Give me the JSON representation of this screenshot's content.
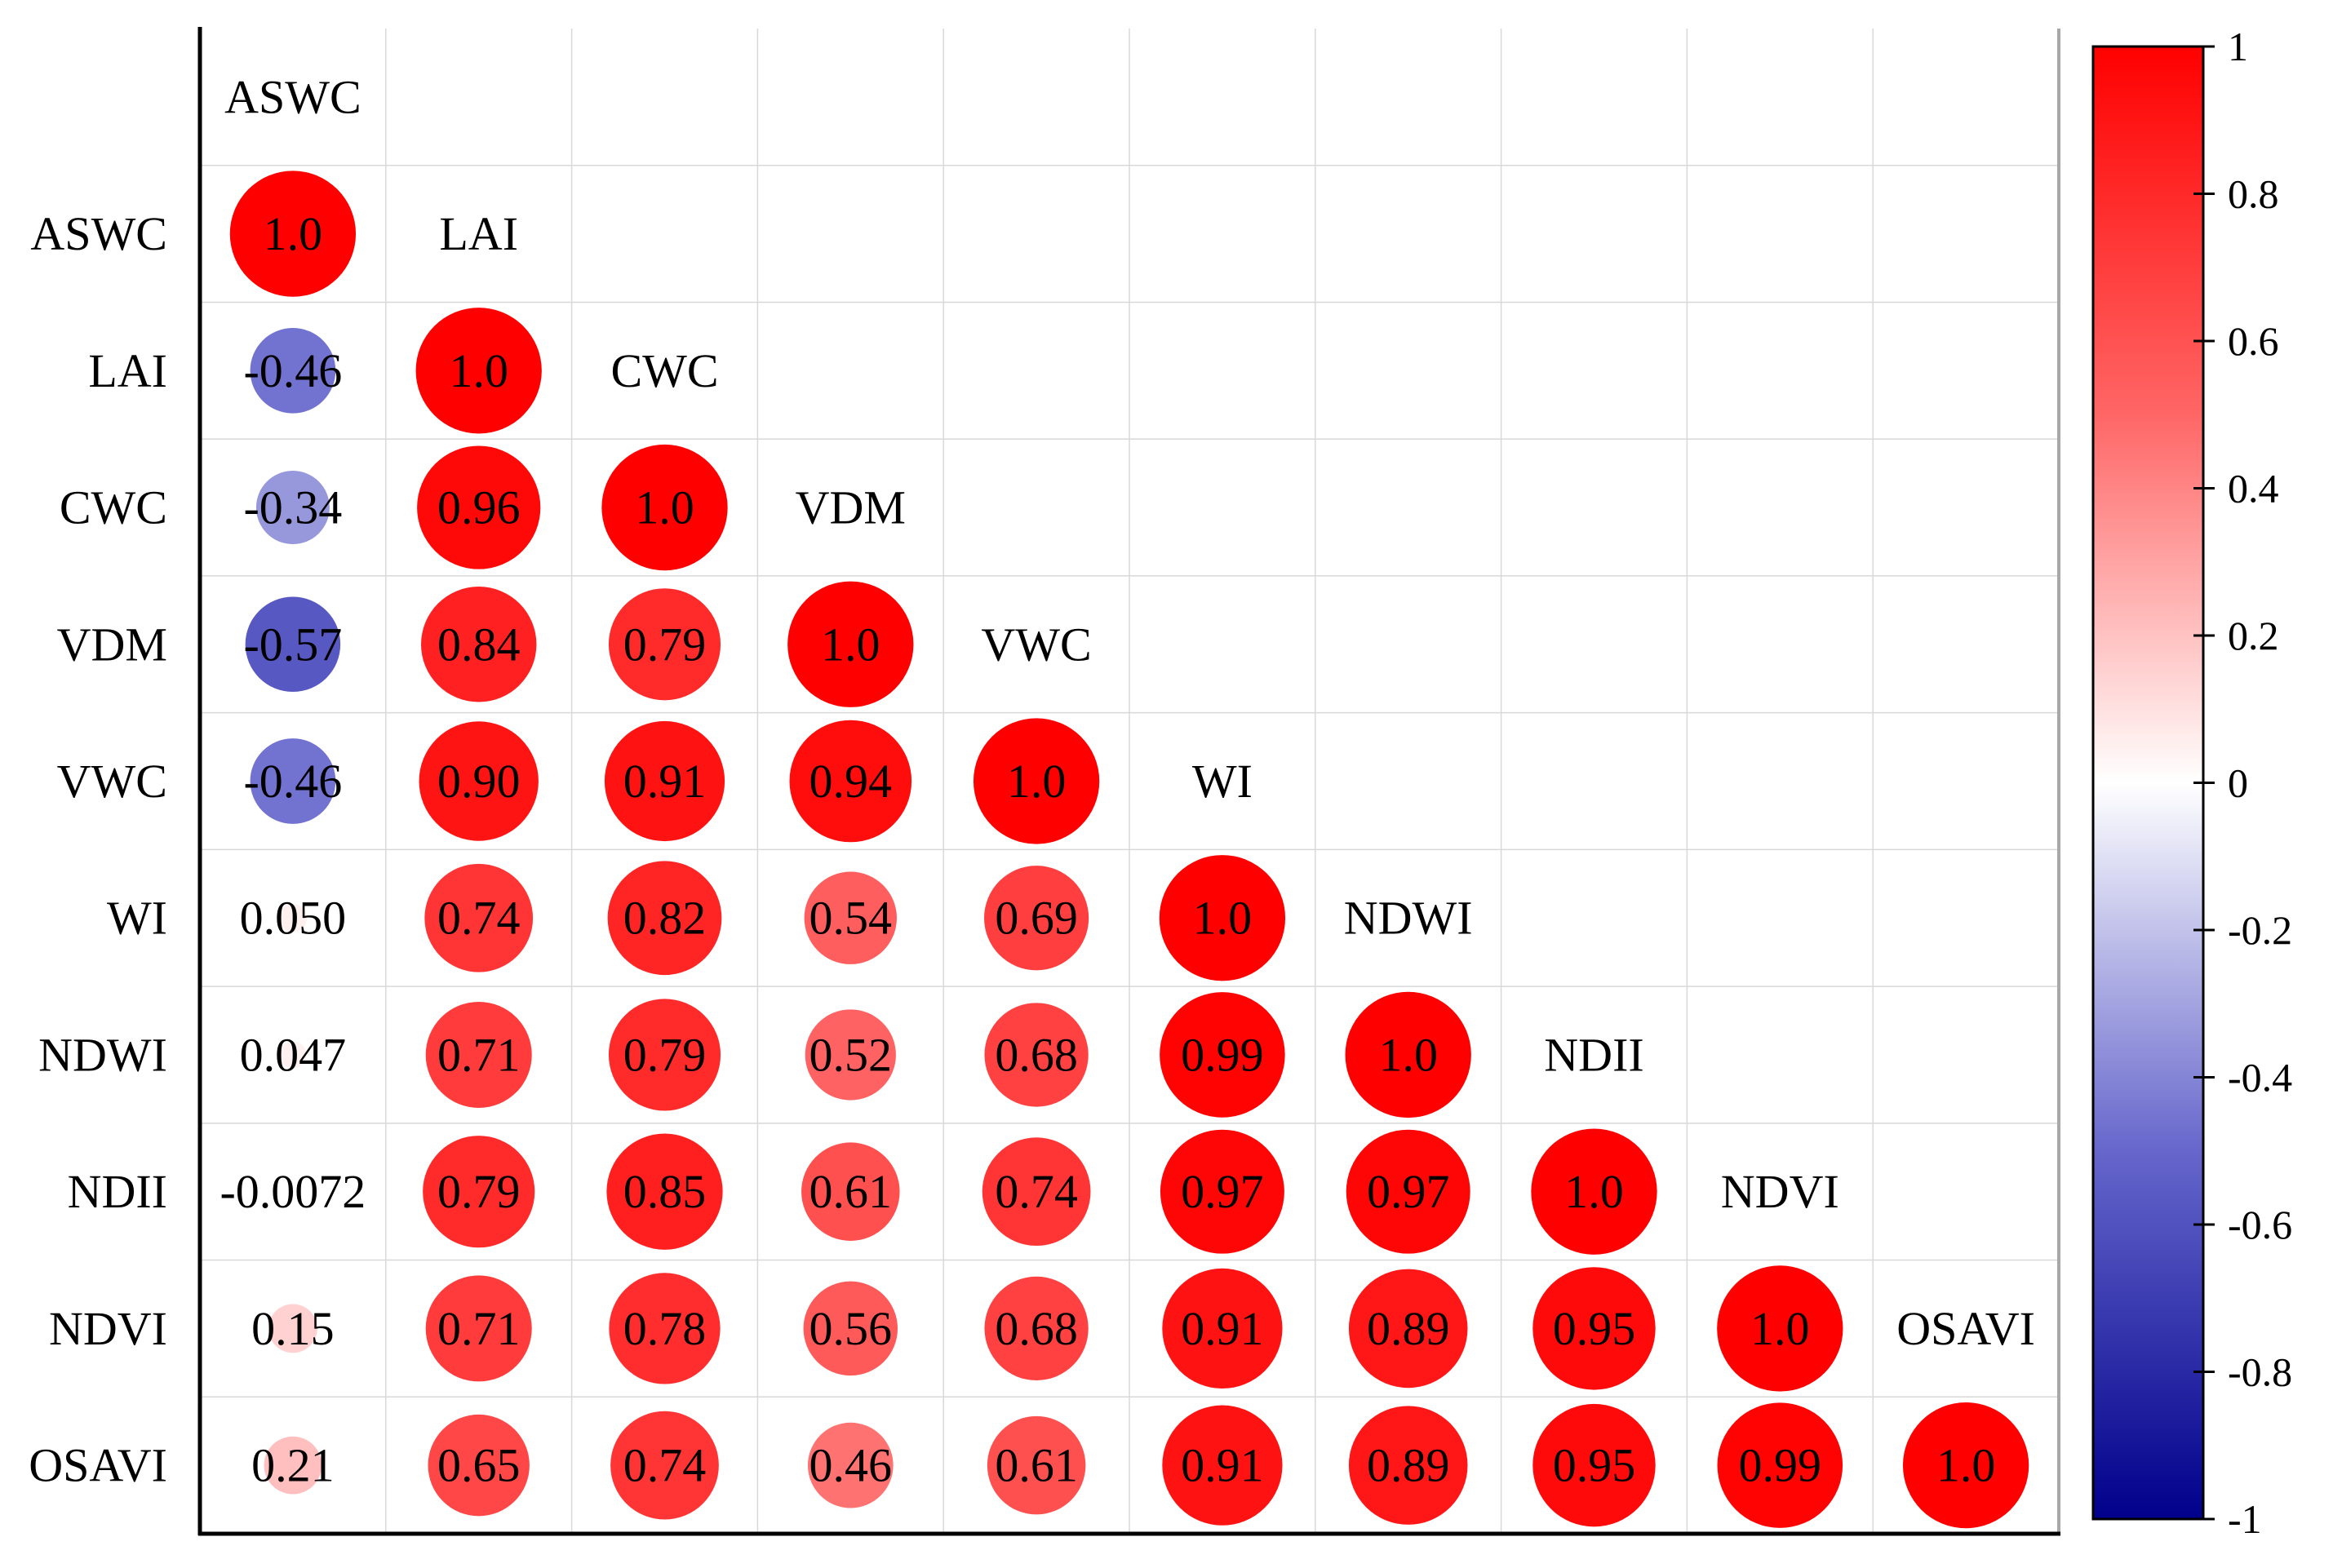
{
  "chart_data": {
    "type": "heatmap",
    "subtype": "lower-triangular correlation matrix (circle glyphs)",
    "variables": [
      "ASWC",
      "LAI",
      "CWC",
      "VDM",
      "VWC",
      "WI",
      "NDWI",
      "NDII",
      "NDVI",
      "OSAVI"
    ],
    "cells": [
      {
        "row": "ASWC",
        "col": "ASWC",
        "value": 1.0,
        "label": "1.0"
      },
      {
        "row": "LAI",
        "col": "ASWC",
        "value": -0.46,
        "label": "-0.46"
      },
      {
        "row": "LAI",
        "col": "LAI",
        "value": 1.0,
        "label": "1.0"
      },
      {
        "row": "CWC",
        "col": "ASWC",
        "value": -0.34,
        "label": "-0.34"
      },
      {
        "row": "CWC",
        "col": "LAI",
        "value": 0.96,
        "label": "0.96"
      },
      {
        "row": "CWC",
        "col": "CWC",
        "value": 1.0,
        "label": "1.0"
      },
      {
        "row": "VDM",
        "col": "ASWC",
        "value": -0.57,
        "label": "-0.57"
      },
      {
        "row": "VDM",
        "col": "LAI",
        "value": 0.84,
        "label": "0.84"
      },
      {
        "row": "VDM",
        "col": "CWC",
        "value": 0.79,
        "label": "0.79"
      },
      {
        "row": "VDM",
        "col": "VDM",
        "value": 1.0,
        "label": "1.0"
      },
      {
        "row": "VWC",
        "col": "ASWC",
        "value": -0.46,
        "label": "-0.46"
      },
      {
        "row": "VWC",
        "col": "LAI",
        "value": 0.9,
        "label": "0.90"
      },
      {
        "row": "VWC",
        "col": "CWC",
        "value": 0.91,
        "label": "0.91"
      },
      {
        "row": "VWC",
        "col": "VDM",
        "value": 0.94,
        "label": "0.94"
      },
      {
        "row": "VWC",
        "col": "VWC",
        "value": 1.0,
        "label": "1.0"
      },
      {
        "row": "WI",
        "col": "ASWC",
        "value": 0.05,
        "label": "0.050"
      },
      {
        "row": "WI",
        "col": "LAI",
        "value": 0.74,
        "label": "0.74"
      },
      {
        "row": "WI",
        "col": "CWC",
        "value": 0.82,
        "label": "0.82"
      },
      {
        "row": "WI",
        "col": "VDM",
        "value": 0.54,
        "label": "0.54"
      },
      {
        "row": "WI",
        "col": "VWC",
        "value": 0.69,
        "label": "0.69"
      },
      {
        "row": "WI",
        "col": "WI",
        "value": 1.0,
        "label": "1.0"
      },
      {
        "row": "NDWI",
        "col": "ASWC",
        "value": 0.047,
        "label": "0.047"
      },
      {
        "row": "NDWI",
        "col": "LAI",
        "value": 0.71,
        "label": "0.71"
      },
      {
        "row": "NDWI",
        "col": "CWC",
        "value": 0.79,
        "label": "0.79"
      },
      {
        "row": "NDWI",
        "col": "VDM",
        "value": 0.52,
        "label": "0.52"
      },
      {
        "row": "NDWI",
        "col": "VWC",
        "value": 0.68,
        "label": "0.68"
      },
      {
        "row": "NDWI",
        "col": "WI",
        "value": 0.99,
        "label": "0.99"
      },
      {
        "row": "NDWI",
        "col": "NDWI",
        "value": 1.0,
        "label": "1.0"
      },
      {
        "row": "NDII",
        "col": "ASWC",
        "value": -0.0072,
        "label": "-0.0072"
      },
      {
        "row": "NDII",
        "col": "LAI",
        "value": 0.79,
        "label": "0.79"
      },
      {
        "row": "NDII",
        "col": "CWC",
        "value": 0.85,
        "label": "0.85"
      },
      {
        "row": "NDII",
        "col": "VDM",
        "value": 0.61,
        "label": "0.61"
      },
      {
        "row": "NDII",
        "col": "VWC",
        "value": 0.74,
        "label": "0.74"
      },
      {
        "row": "NDII",
        "col": "WI",
        "value": 0.97,
        "label": "0.97"
      },
      {
        "row": "NDII",
        "col": "NDWI",
        "value": 0.97,
        "label": "0.97"
      },
      {
        "row": "NDII",
        "col": "NDII",
        "value": 1.0,
        "label": "1.0"
      },
      {
        "row": "NDVI",
        "col": "ASWC",
        "value": 0.15,
        "label": "0.15"
      },
      {
        "row": "NDVI",
        "col": "LAI",
        "value": 0.71,
        "label": "0.71"
      },
      {
        "row": "NDVI",
        "col": "CWC",
        "value": 0.78,
        "label": "0.78"
      },
      {
        "row": "NDVI",
        "col": "VDM",
        "value": 0.56,
        "label": "0.56"
      },
      {
        "row": "NDVI",
        "col": "VWC",
        "value": 0.68,
        "label": "0.68"
      },
      {
        "row": "NDVI",
        "col": "WI",
        "value": 0.91,
        "label": "0.91"
      },
      {
        "row": "NDVI",
        "col": "NDWI",
        "value": 0.89,
        "label": "0.89"
      },
      {
        "row": "NDVI",
        "col": "NDII",
        "value": 0.95,
        "label": "0.95"
      },
      {
        "row": "NDVI",
        "col": "NDVI",
        "value": 1.0,
        "label": "1.0"
      },
      {
        "row": "OSAVI",
        "col": "ASWC",
        "value": 0.21,
        "label": "0.21"
      },
      {
        "row": "OSAVI",
        "col": "LAI",
        "value": 0.65,
        "label": "0.65"
      },
      {
        "row": "OSAVI",
        "col": "CWC",
        "value": 0.74,
        "label": "0.74"
      },
      {
        "row": "OSAVI",
        "col": "VDM",
        "value": 0.46,
        "label": "0.46"
      },
      {
        "row": "OSAVI",
        "col": "VWC",
        "value": 0.61,
        "label": "0.61"
      },
      {
        "row": "OSAVI",
        "col": "WI",
        "value": 0.91,
        "label": "0.91"
      },
      {
        "row": "OSAVI",
        "col": "NDWI",
        "value": 0.89,
        "label": "0.89"
      },
      {
        "row": "OSAVI",
        "col": "NDII",
        "value": 0.95,
        "label": "0.95"
      },
      {
        "row": "OSAVI",
        "col": "NDVI",
        "value": 0.99,
        "label": "0.99"
      },
      {
        "row": "OSAVI",
        "col": "OSAVI",
        "value": 1.0,
        "label": "1.0"
      }
    ],
    "colorbar": {
      "range": [
        -1,
        1
      ],
      "ticks": [
        1,
        0.8,
        0.6,
        0.4,
        0.2,
        0,
        -0.2,
        -0.4,
        -0.6,
        -0.8,
        -1
      ],
      "colors": {
        "negative": "#00008b",
        "mid_negative": "#6666cc",
        "zero": "#ffffff",
        "mid_positive": "#ff6666",
        "positive": "#ff0000"
      }
    },
    "grid": true,
    "legend_placement": "right"
  }
}
